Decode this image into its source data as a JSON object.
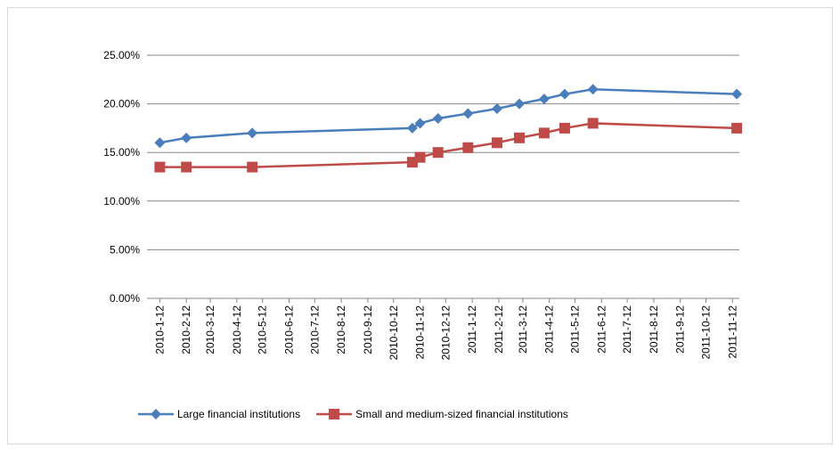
{
  "chart_data": {
    "type": "line",
    "x": [
      "2010-1-12",
      "2010-2-12",
      "2010-4-30",
      "2010-11-3",
      "2010-11-12",
      "2010-12-3",
      "2011-1-7",
      "2011-2-10",
      "2011-3-8",
      "2011-4-6",
      "2011-4-30",
      "2011-6-2",
      "2011-11-17"
    ],
    "series": [
      {
        "name": "Large financial institutions",
        "color": "#4a7ebb",
        "marker": "diamond",
        "values": [
          16,
          16.5,
          17,
          17.5,
          18,
          18.5,
          19,
          19.5,
          20,
          20.5,
          21,
          21.5,
          21
        ]
      },
      {
        "name": "Small and medium-sized financial institutions",
        "color": "#be4b48",
        "marker": "square",
        "values": [
          13.5,
          13.5,
          13.5,
          14,
          14.5,
          15,
          15.5,
          16,
          16.5,
          17,
          17.5,
          18,
          17.5
        ]
      }
    ],
    "xlim": [
      "2009-12-28",
      "2011-11-20"
    ],
    "xticks": [
      "2010-1-12",
      "2010-2-12",
      "2010-3-12",
      "2010-4-12",
      "2010-5-12",
      "2010-6-12",
      "2010-7-12",
      "2010-8-12",
      "2010-9-12",
      "2010-10-12",
      "2010-11-12",
      "2010-12-12",
      "2011-1-12",
      "2011-2-12",
      "2011-3-12",
      "2011-4-12",
      "2011-5-12",
      "2011-6-12",
      "2011-7-12",
      "2011-8-12",
      "2011-9-12",
      "2011-10-12",
      "2011-11-12"
    ],
    "ylim": [
      0,
      25
    ],
    "yticks": [
      {
        "value": 0,
        "label": "0.00%"
      },
      {
        "value": 5,
        "label": "5.00%"
      },
      {
        "value": 10,
        "label": "10.00%"
      },
      {
        "value": 15,
        "label": "15.00%"
      },
      {
        "value": 20,
        "label": "20.00%"
      },
      {
        "value": 25,
        "label": "25.00%"
      }
    ],
    "grid": true,
    "legend": "bottom"
  }
}
